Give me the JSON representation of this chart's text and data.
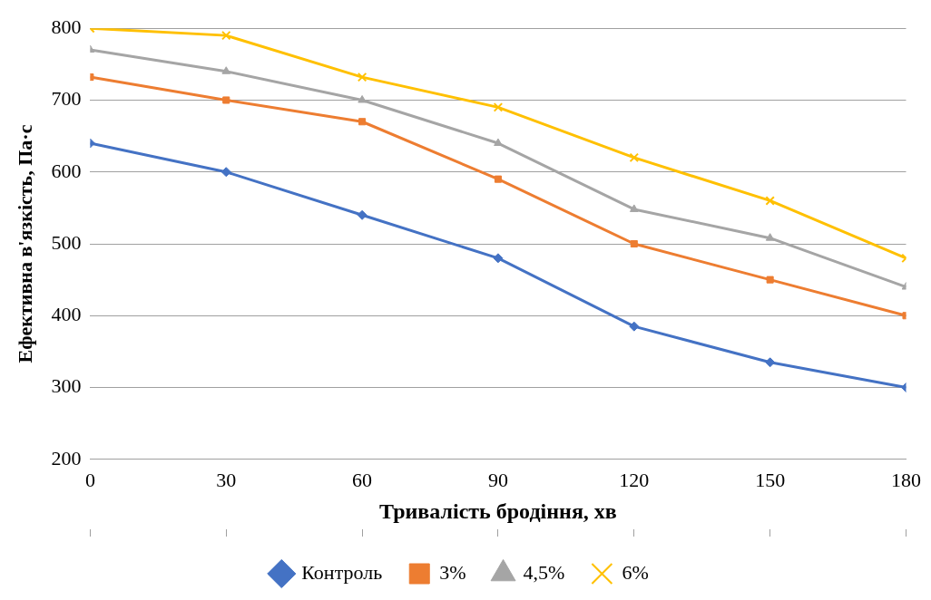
{
  "chart_data": {
    "type": "line",
    "xlabel": "Тривалість бродіння, хв",
    "ylabel": "Ефективна в'язкість, Па·с",
    "x": [
      0,
      30,
      60,
      90,
      120,
      150,
      180
    ],
    "xlim": [
      0,
      180
    ],
    "xticks": [
      0,
      30,
      60,
      90,
      120,
      150,
      180
    ],
    "ylim": [
      200,
      800
    ],
    "yticks": [
      200,
      300,
      400,
      500,
      600,
      700,
      800
    ],
    "grid": "y",
    "legend": "bottom",
    "line_style": "solid",
    "series": [
      {
        "name": "Контроль",
        "color": "#4472c4",
        "marker": "diamond",
        "values": [
          640,
          600,
          540,
          480,
          385,
          335,
          300
        ]
      },
      {
        "name": "3%",
        "color": "#ed7d31",
        "marker": "square",
        "values": [
          732,
          700,
          670,
          590,
          500,
          450,
          400
        ]
      },
      {
        "name": "4,5%",
        "color": "#a5a5a5",
        "marker": "triangle",
        "values": [
          770,
          740,
          700,
          640,
          548,
          508,
          440
        ]
      },
      {
        "name": "6%",
        "color": "#ffc000",
        "marker": "cross",
        "values": [
          800,
          790,
          732,
          690,
          620,
          560,
          480
        ]
      }
    ]
  }
}
